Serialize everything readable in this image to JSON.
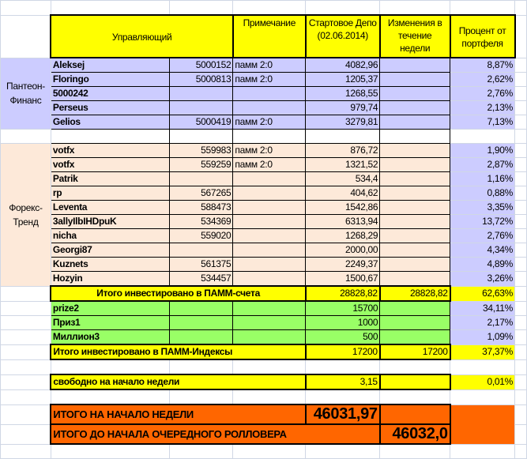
{
  "header": {
    "manager": "Управляющий",
    "note": "Примечание",
    "start_depo": "Стартовое Депо (02.06.2014)",
    "changes": "Изменения в течение недели",
    "percent": "Процент от портфеля"
  },
  "groups": [
    {
      "label": "Пантеон-Финанс",
      "rows": [
        {
          "name": "Aleksej",
          "id": "5000152",
          "note": "памм 2:0",
          "start": "4082,96",
          "change": "",
          "pct": "8,87%"
        },
        {
          "name": "Floringo",
          "id": "5000813",
          "note": "памм 2:0",
          "start": "1205,37",
          "change": "",
          "pct": "2,62%"
        },
        {
          "name": "5000242",
          "id": "",
          "note": "",
          "start": "1268,55",
          "change": "",
          "pct": "2,76%"
        },
        {
          "name": "Perseus",
          "id": "",
          "note": "",
          "start": "979,74",
          "change": "",
          "pct": "2,13%"
        },
        {
          "name": "Gelios",
          "id": "5000419",
          "note": "памм 2:0",
          "start": "3279,81",
          "change": "",
          "pct": "7,13%"
        }
      ]
    },
    {
      "label": "Форекс-Тренд",
      "rows": [
        {
          "name": "votfx",
          "id": "559983",
          "note": "памм 2:0",
          "start": "876,72",
          "change": "",
          "pct": "1,90%"
        },
        {
          "name": "votfx",
          "id": "559259",
          "note": "памм 2:0",
          "start": "1321,52",
          "change": "",
          "pct": "2,87%"
        },
        {
          "name": "Patrik",
          "id": "",
          "note": "",
          "start": "534,4",
          "change": "",
          "pct": "1,16%"
        },
        {
          "name": "rp",
          "id": "567265",
          "note": "",
          "start": "404,62",
          "change": "",
          "pct": "0,88%"
        },
        {
          "name": "Leventa",
          "id": "588473",
          "note": "",
          "start": "1542,86",
          "change": "",
          "pct": "3,35%"
        },
        {
          "name": "3allyIlbIHDpuK",
          "id": "534369",
          "note": "",
          "start": "6313,94",
          "change": "",
          "pct": "13,72%"
        },
        {
          "name": "nicha",
          "id": "559020",
          "note": "",
          "start": "1268,29",
          "change": "",
          "pct": "2,76%"
        },
        {
          "name": "Georgi87",
          "id": "",
          "note": "",
          "start": "2000,00",
          "change": "",
          "pct": "4,34%"
        },
        {
          "name": "Kuznets",
          "id": "561375",
          "note": "",
          "start": "2249,37",
          "change": "",
          "pct": "4,89%"
        },
        {
          "name": "Hozyin",
          "id": "534457",
          "note": "",
          "start": "1500,67",
          "change": "",
          "pct": "3,26%"
        }
      ]
    }
  ],
  "pamm_total": {
    "label": "Итого инвестировано в ПАММ-счета",
    "start": "28828,82",
    "change": "28828,82",
    "pct": "62,63%"
  },
  "indexes": [
    {
      "name": "prize2",
      "start": "15700",
      "pct": "34,11%"
    },
    {
      "name": "Приз1",
      "start": "1000",
      "pct": "2,17%"
    },
    {
      "name": "Миллион3",
      "start": "500",
      "pct": "1,09%"
    }
  ],
  "index_total": {
    "label": "Итого инвестировано в ПАММ-Индексы",
    "start": "17200",
    "change": "17200",
    "pct": "37,37%"
  },
  "free": {
    "label": "свободно на начало недели",
    "start": "3,15",
    "pct": "0,01%"
  },
  "week_total": {
    "label": "ИТОГО НА НАЧАЛО НЕДЕЛИ",
    "value": "46031,97"
  },
  "rollover_total": {
    "label": "ИТОГО ДО НАЧАЛА ОЧЕРЕДНОГО РОЛЛОВЕРА",
    "value": "46032,0"
  },
  "colors": {
    "yellow": "#ffff00",
    "lavender": "#ccccff",
    "peach": "#fde9d9",
    "green": "#99ff66",
    "orange": "#ff6600"
  }
}
